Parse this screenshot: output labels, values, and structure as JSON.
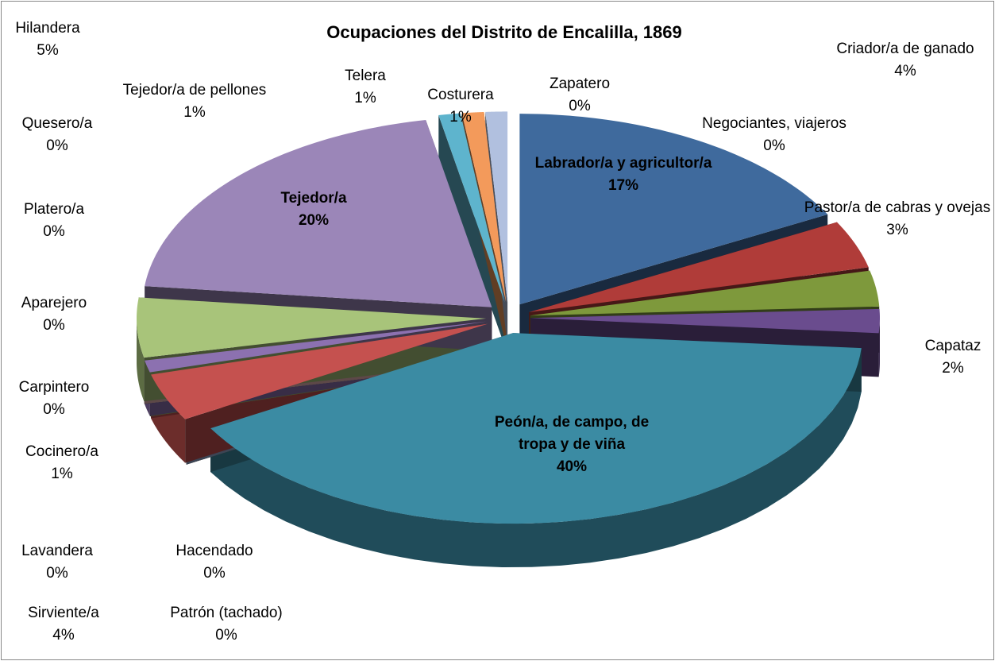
{
  "chart_data": {
    "type": "pie",
    "title": "Ocupaciones del Distrito de Encalilla, 1869",
    "categories": [
      "Labrador/a y agricultor/a",
      "Criador/a de ganado",
      "Pastor/a de cabras y ovejas",
      "Capataz",
      "Peón/a, de campo, de tropa y de viña",
      "Hacendado",
      "Patrón (tachado)",
      "Sirviente/a",
      "Lavandera",
      "Cocinero/a",
      "Carpintero",
      "Aparejero",
      "Platero/a",
      "Quesero/a",
      "Hilandera",
      "Tejedor/a",
      "Tejedor/a de pellones",
      "Telera",
      "Costurera",
      "Zapatero",
      "Negociantes, viajeros"
    ],
    "values": [
      17,
      4,
      3,
      2,
      40,
      0,
      0,
      4,
      0,
      1,
      0,
      0,
      0,
      0,
      5,
      20,
      1,
      1,
      1,
      0,
      0
    ],
    "value_labels": [
      "17%",
      "4%",
      "3%",
      "2%",
      "40%",
      "0%",
      "0%",
      "4%",
      "0%",
      "1%",
      "0%",
      "0%",
      "0%",
      "0%",
      "5%",
      "20%",
      "1%",
      "1%",
      "1%",
      "0%",
      "0%"
    ],
    "colors": [
      "#3f6a9d",
      "#b03c39",
      "#7e993c",
      "#6a4c8e",
      "#3b8ba3",
      "#e48427",
      "#94add4",
      "#c5514f",
      "#a6c26d",
      "#8c71b0",
      "#4eaeca",
      "#f5a55a",
      "#c0cde6",
      "#e8b4b3",
      "#a8c47a",
      "#9b86b8",
      "#5eb4cd",
      "#f39a5b",
      "#b1c0df",
      "#e3b2b1",
      "#d1deb6"
    ]
  }
}
